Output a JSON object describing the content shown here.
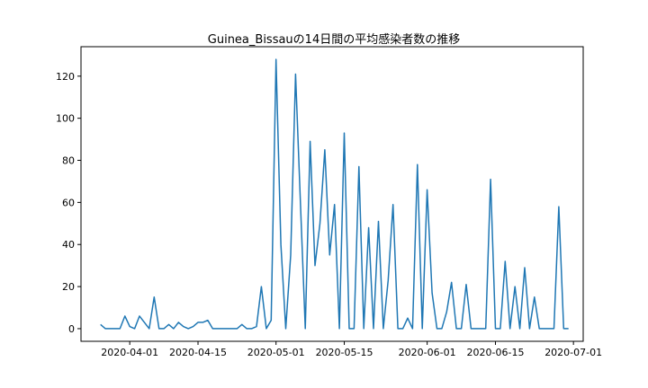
{
  "chart_data": {
    "type": "line",
    "title": "Guinea_Bissauの14日間の平均感染者数の推移",
    "xlabel": "",
    "ylabel": "",
    "x_range": [
      "2020-03-22",
      "2020-07-03"
    ],
    "ylim": [
      -6,
      134
    ],
    "x_ticks": [
      "2020-04-01",
      "2020-04-15",
      "2020-05-01",
      "2020-05-15",
      "2020-06-01",
      "2020-06-15",
      "2020-07-01"
    ],
    "y_ticks": [
      0,
      20,
      40,
      60,
      80,
      100,
      120
    ],
    "grid": false,
    "legend": "none",
    "line_color": "#1f77b4",
    "series": [
      {
        "x": [
          "2020-03-26",
          "2020-03-27",
          "2020-03-28",
          "2020-03-29",
          "2020-03-30",
          "2020-03-31",
          "2020-04-01",
          "2020-04-02",
          "2020-04-03",
          "2020-04-04",
          "2020-04-05",
          "2020-04-06",
          "2020-04-07",
          "2020-04-08",
          "2020-04-09",
          "2020-04-10",
          "2020-04-11",
          "2020-04-12",
          "2020-04-13",
          "2020-04-14",
          "2020-04-15",
          "2020-04-16",
          "2020-04-17",
          "2020-04-18",
          "2020-04-19",
          "2020-04-20",
          "2020-04-21",
          "2020-04-22",
          "2020-04-23",
          "2020-04-24",
          "2020-04-25",
          "2020-04-26",
          "2020-04-27",
          "2020-04-28",
          "2020-04-29",
          "2020-04-30",
          "2020-05-01",
          "2020-05-02",
          "2020-05-03",
          "2020-05-04",
          "2020-05-05",
          "2020-05-06",
          "2020-05-07",
          "2020-05-08",
          "2020-05-09",
          "2020-05-10",
          "2020-05-11",
          "2020-05-12",
          "2020-05-13",
          "2020-05-14",
          "2020-05-15",
          "2020-05-16",
          "2020-05-17",
          "2020-05-18",
          "2020-05-19",
          "2020-05-20",
          "2020-05-21",
          "2020-05-22",
          "2020-05-23",
          "2020-05-24",
          "2020-05-25",
          "2020-05-26",
          "2020-05-27",
          "2020-05-28",
          "2020-05-29",
          "2020-05-30",
          "2020-05-31",
          "2020-06-01",
          "2020-06-02",
          "2020-06-03",
          "2020-06-04",
          "2020-06-05",
          "2020-06-06",
          "2020-06-07",
          "2020-06-08",
          "2020-06-09",
          "2020-06-10",
          "2020-06-11",
          "2020-06-12",
          "2020-06-13",
          "2020-06-14",
          "2020-06-15",
          "2020-06-16",
          "2020-06-17",
          "2020-06-18",
          "2020-06-19",
          "2020-06-20",
          "2020-06-21",
          "2020-06-22",
          "2020-06-23",
          "2020-06-24",
          "2020-06-25",
          "2020-06-26",
          "2020-06-27",
          "2020-06-28",
          "2020-06-29",
          "2020-06-30"
        ],
        "y": [
          2,
          0,
          0,
          0,
          0,
          6,
          1,
          0,
          6,
          3,
          0,
          15,
          0,
          0,
          2,
          0,
          3,
          1,
          0,
          1,
          3,
          3,
          4,
          0,
          0,
          0,
          0,
          0,
          0,
          2,
          0,
          0,
          1,
          20,
          0,
          4,
          128,
          40,
          0,
          35,
          121,
          60,
          0,
          89,
          30,
          50,
          85,
          35,
          59,
          0,
          93,
          0,
          0,
          77,
          0,
          48,
          0,
          51,
          0,
          23,
          59,
          0,
          0,
          5,
          0,
          78,
          0,
          66,
          17,
          0,
          0,
          8,
          22,
          0,
          0,
          21,
          0,
          0,
          0,
          0,
          71,
          0,
          0,
          32,
          0,
          20,
          0,
          29,
          0,
          15,
          0,
          0,
          0,
          0,
          58,
          0,
          0
        ]
      }
    ]
  }
}
